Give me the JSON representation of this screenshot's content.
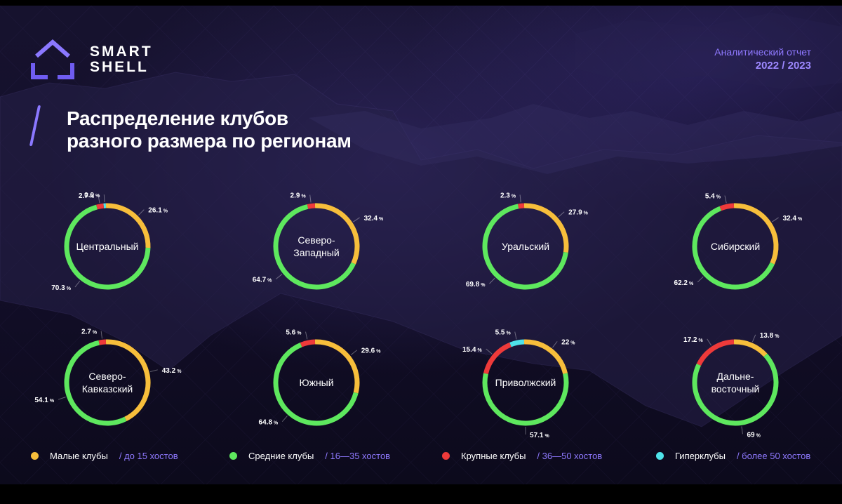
{
  "brand": {
    "name": "SMART\nSHELL"
  },
  "report": {
    "label": "Аналитический отчет",
    "year": "2022 / 2023"
  },
  "title": "Распределение клубов\nразного размера по регионам",
  "colors": {
    "small": "#f7be3b",
    "medium": "#5ee85e",
    "large": "#ee3a3a",
    "hyper": "#4fe3ea",
    "accent": "#8b78ff"
  },
  "legend": [
    {
      "key": "small",
      "label": "Малые клубы",
      "range": "/ до 15 хостов"
    },
    {
      "key": "medium",
      "label": "Средние клубы",
      "range": "/ 16—35 хостов"
    },
    {
      "key": "large",
      "label": "Крупные клубы",
      "range": "/ 36—50 хостов"
    },
    {
      "key": "hyper",
      "label": "Гиперклубы",
      "range": "/ более 50 хостов"
    }
  ],
  "chart_data": [
    {
      "type": "pie",
      "title": "Центральный",
      "donut": true,
      "series": [
        {
          "key": "small",
          "value": 26.1,
          "label": "26.1"
        },
        {
          "key": "medium",
          "value": 70.3,
          "label": "70.3"
        },
        {
          "key": "large",
          "value": 2.7,
          "label": "2.7"
        },
        {
          "key": "hyper",
          "value": 0.9,
          "label": "0.9"
        }
      ]
    },
    {
      "type": "pie",
      "title": "Северо-\nЗападный",
      "donut": true,
      "series": [
        {
          "key": "small",
          "value": 32.4,
          "label": "32.4"
        },
        {
          "key": "medium",
          "value": 64.7,
          "label": "64.7"
        },
        {
          "key": "large",
          "value": 2.9,
          "label": "2.9"
        }
      ]
    },
    {
      "type": "pie",
      "title": "Уральский",
      "donut": true,
      "series": [
        {
          "key": "small",
          "value": 27.9,
          "label": "27.9"
        },
        {
          "key": "medium",
          "value": 69.8,
          "label": "69.8"
        },
        {
          "key": "large",
          "value": 2.3,
          "label": "2.3"
        }
      ]
    },
    {
      "type": "pie",
      "title": "Сибирский",
      "donut": true,
      "series": [
        {
          "key": "small",
          "value": 32.4,
          "label": "32.4"
        },
        {
          "key": "medium",
          "value": 62.2,
          "label": "62.2"
        },
        {
          "key": "large",
          "value": 5.4,
          "label": "5.4"
        }
      ]
    },
    {
      "type": "pie",
      "title": "Северо-\nКавказский",
      "donut": true,
      "series": [
        {
          "key": "small",
          "value": 43.2,
          "label": "43.2"
        },
        {
          "key": "medium",
          "value": 54.1,
          "label": "54.1"
        },
        {
          "key": "large",
          "value": 2.7,
          "label": "2.7"
        }
      ]
    },
    {
      "type": "pie",
      "title": "Южный",
      "donut": true,
      "series": [
        {
          "key": "small",
          "value": 29.6,
          "label": "29.6"
        },
        {
          "key": "medium",
          "value": 64.8,
          "label": "64.8"
        },
        {
          "key": "large",
          "value": 5.6,
          "label": "5.6"
        }
      ]
    },
    {
      "type": "pie",
      "title": "Приволжский",
      "donut": true,
      "series": [
        {
          "key": "small",
          "value": 22,
          "label": "22"
        },
        {
          "key": "medium",
          "value": 57.1,
          "label": "57.1"
        },
        {
          "key": "large",
          "value": 15.4,
          "label": "15.4"
        },
        {
          "key": "hyper",
          "value": 5.5,
          "label": "5.5"
        }
      ]
    },
    {
      "type": "pie",
      "title": "Дальне-\nвосточный",
      "donut": true,
      "series": [
        {
          "key": "small",
          "value": 13.8,
          "label": "13.8"
        },
        {
          "key": "medium",
          "value": 69,
          "label": "69"
        },
        {
          "key": "large",
          "value": 17.2,
          "label": "17.2"
        }
      ]
    }
  ]
}
